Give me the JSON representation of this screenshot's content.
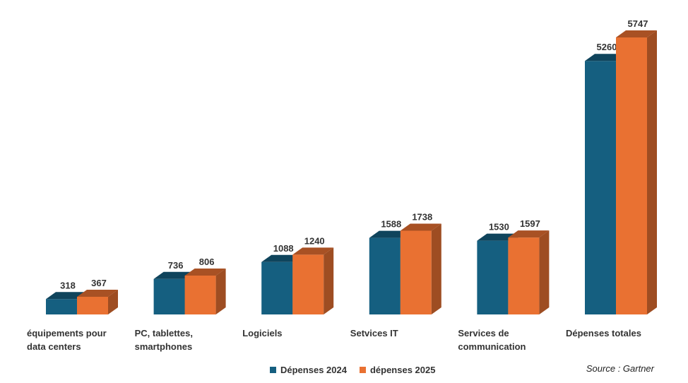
{
  "chart_data": {
    "type": "bar",
    "categories": [
      [
        "équipements pour",
        "data centers"
      ],
      [
        "PC, tablettes,",
        "smartphones"
      ],
      [
        "Logiciels"
      ],
      [
        "Setvices IT"
      ],
      [
        "Services de",
        "communication"
      ],
      [
        "Dépenses totales"
      ]
    ],
    "series": [
      {
        "name": "Dépenses 2024",
        "values": [
          318,
          736,
          1088,
          1588,
          1530,
          5260
        ],
        "color": "#155f80"
      },
      {
        "name": "dépenses 2025",
        "values": [
          367,
          806,
          1240,
          1738,
          1597,
          5747
        ],
        "color": "#e97132"
      }
    ],
    "ylim": [
      0,
      5747
    ],
    "grid": false,
    "legend_position": "bottom",
    "source": "Source : Gartner"
  }
}
